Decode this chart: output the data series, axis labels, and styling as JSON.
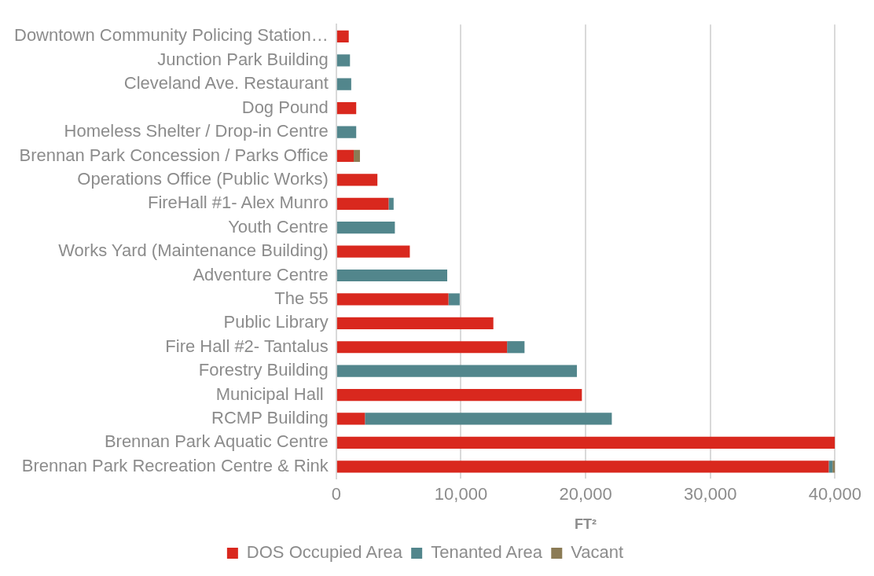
{
  "chart_data": {
    "type": "bar",
    "orientation": "horizontal",
    "stacked": true,
    "categories": [
      "Downtown Community Policing Station…",
      "Junction Park Building",
      "Cleveland Ave. Restaurant",
      "Dog Pound",
      "Homeless Shelter / Drop-in Centre",
      "Brennan Park Concession / Parks Office",
      "Operations Office (Public Works)",
      "FireHall #1- Alex Munro",
      "Youth Centre",
      "Works Yard (Maintenance Building)",
      "Adventure Centre",
      "The 55",
      "Public Library",
      "Fire Hall #2- Tantalus",
      "Forestry Building",
      "Municipal Hall ",
      "RCMP Building",
      "Brennan Park Aquatic Centre",
      "Brennan Park Recreation Centre & Rink"
    ],
    "series": [
      {
        "name": "DOS Occupied Area",
        "color": "#d9281e",
        "values": [
          1000,
          0,
          0,
          1600,
          0,
          1400,
          3300,
          4200,
          0,
          5900,
          0,
          9000,
          12600,
          13700,
          0,
          19700,
          2300,
          40000,
          39500
        ]
      },
      {
        "name": "Tenanted Area",
        "color": "#52868c",
        "values": [
          0,
          1100,
          1200,
          0,
          1600,
          0,
          0,
          400,
          4700,
          0,
          8900,
          900,
          0,
          1400,
          19300,
          0,
          19800,
          0,
          300
        ]
      },
      {
        "name": "Vacant",
        "color": "#8b7b55",
        "values": [
          0,
          0,
          0,
          0,
          0,
          500,
          0,
          0,
          0,
          0,
          0,
          0,
          0,
          0,
          0,
          0,
          0,
          0,
          200
        ]
      }
    ],
    "xlabel": "FT²",
    "xlim": [
      0,
      40000
    ],
    "xticks": [
      {
        "value": 0,
        "label": "0"
      },
      {
        "value": 10000,
        "label": "10,000"
      },
      {
        "value": 20000,
        "label": "20,000"
      },
      {
        "value": 30000,
        "label": "30,000"
      },
      {
        "value": 40000,
        "label": "40,000"
      }
    ],
    "grid": "x",
    "legend": "bottom"
  }
}
